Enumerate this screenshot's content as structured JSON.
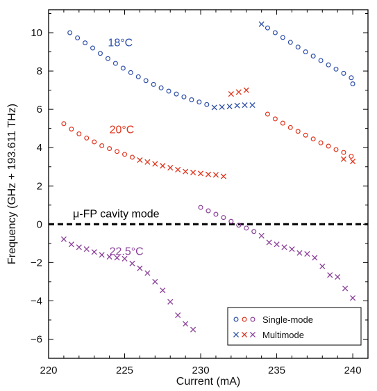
{
  "chart_data": {
    "type": "scatter",
    "xlabel": "Current (mA)",
    "ylabel": "Frequency (GHz + 193.611 THz)",
    "xlim": [
      220,
      241
    ],
    "ylim": [
      -7,
      11.2
    ],
    "x_ticks": [
      220,
      225,
      230,
      235,
      240
    ],
    "x_tick_labels": [
      "220",
      "225",
      "230",
      "235",
      "240"
    ],
    "y_ticks": [
      -6,
      -4,
      -2,
      0,
      2,
      4,
      6,
      8,
      10
    ],
    "y_tick_labels": [
      "−6",
      "−4",
      "−2",
      "0",
      "2",
      "4",
      "6",
      "8",
      "10"
    ],
    "grid": false,
    "legend": {
      "position": "bottom-right",
      "entries": [
        {
          "label": "Single-mode",
          "marker": "circle",
          "colors": [
            "#2e4fa8",
            "#e0341c",
            "#8a3f99"
          ]
        },
        {
          "label": "Multimode",
          "marker": "cross",
          "colors": [
            "#2e4fa8",
            "#e0341c",
            "#8a3f99"
          ]
        }
      ]
    },
    "reference_line": {
      "y": 0,
      "label": "μ-FP cavity mode",
      "style": "dashed",
      "color": "#000000"
    },
    "series": [
      {
        "name": "18°C",
        "color": "#2e4fa8",
        "label_at": [
          223.9,
          9.3
        ],
        "single_mode": [
          [
            221.4,
            10.0
          ],
          [
            221.9,
            9.73
          ],
          [
            222.4,
            9.47
          ],
          [
            222.9,
            9.2
          ],
          [
            223.4,
            8.92
          ],
          [
            223.9,
            8.65
          ],
          [
            224.4,
            8.4
          ],
          [
            224.9,
            8.15
          ],
          [
            225.4,
            7.92
          ],
          [
            225.9,
            7.7
          ],
          [
            226.4,
            7.5
          ],
          [
            226.9,
            7.3
          ],
          [
            227.4,
            7.12
          ],
          [
            227.9,
            6.95
          ],
          [
            228.4,
            6.8
          ],
          [
            228.9,
            6.65
          ],
          [
            229.4,
            6.5
          ],
          [
            229.9,
            6.38
          ],
          [
            230.4,
            6.25
          ],
          [
            234.4,
            10.25
          ],
          [
            234.9,
            10.0
          ],
          [
            235.4,
            9.75
          ],
          [
            235.9,
            9.5
          ],
          [
            236.4,
            9.25
          ],
          [
            236.9,
            9.0
          ],
          [
            237.4,
            8.78
          ],
          [
            237.9,
            8.55
          ],
          [
            238.4,
            8.32
          ],
          [
            238.9,
            8.1
          ],
          [
            239.4,
            7.88
          ],
          [
            239.9,
            7.65
          ],
          [
            240.0,
            7.33
          ]
        ],
        "multimode": [
          [
            230.9,
            6.1
          ],
          [
            231.4,
            6.12
          ],
          [
            231.9,
            6.15
          ],
          [
            232.4,
            6.2
          ],
          [
            232.9,
            6.22
          ],
          [
            233.4,
            6.22
          ],
          [
            234.0,
            10.45
          ]
        ]
      },
      {
        "name": "20°C",
        "color": "#e0341c",
        "label_at": [
          224.0,
          4.75
        ],
        "single_mode": [
          [
            221.0,
            5.25
          ],
          [
            221.5,
            4.97
          ],
          [
            222.0,
            4.72
          ],
          [
            222.5,
            4.5
          ],
          [
            223.0,
            4.3
          ],
          [
            223.5,
            4.1
          ],
          [
            224.0,
            3.95
          ],
          [
            224.5,
            3.8
          ],
          [
            225.0,
            3.65
          ],
          [
            225.5,
            3.5
          ],
          [
            234.4,
            5.75
          ],
          [
            234.9,
            5.5
          ],
          [
            235.4,
            5.28
          ],
          [
            235.9,
            5.05
          ],
          [
            236.4,
            4.85
          ],
          [
            236.9,
            4.65
          ],
          [
            237.4,
            4.45
          ],
          [
            237.9,
            4.25
          ],
          [
            238.4,
            4.08
          ],
          [
            238.9,
            3.9
          ],
          [
            239.4,
            3.75
          ],
          [
            239.9,
            3.55
          ]
        ],
        "multimode": [
          [
            226.0,
            3.35
          ],
          [
            226.5,
            3.25
          ],
          [
            227.0,
            3.15
          ],
          [
            227.5,
            3.05
          ],
          [
            228.0,
            2.95
          ],
          [
            228.5,
            2.85
          ],
          [
            229.0,
            2.75
          ],
          [
            229.5,
            2.7
          ],
          [
            230.0,
            2.65
          ],
          [
            230.5,
            2.6
          ],
          [
            231.0,
            2.58
          ],
          [
            231.5,
            2.5
          ],
          [
            232.0,
            6.8
          ],
          [
            232.5,
            6.9
          ],
          [
            233.0,
            7.0
          ],
          [
            239.4,
            3.4
          ],
          [
            240.0,
            3.28
          ]
        ]
      },
      {
        "name": "22.5°C",
        "color": "#8a3f99",
        "label_at": [
          224.0,
          -1.6
        ],
        "single_mode": [
          [
            230.0,
            0.88
          ],
          [
            230.5,
            0.7
          ],
          [
            231.0,
            0.52
          ],
          [
            231.5,
            0.35
          ],
          [
            232.0,
            0.15
          ],
          [
            232.5,
            -0.05
          ],
          [
            233.0,
            -0.2
          ],
          [
            233.5,
            -0.38
          ]
        ],
        "multimode": [
          [
            221.0,
            -0.78
          ],
          [
            221.5,
            -1.05
          ],
          [
            222.0,
            -1.2
          ],
          [
            222.5,
            -1.3
          ],
          [
            223.0,
            -1.45
          ],
          [
            223.5,
            -1.6
          ],
          [
            224.0,
            -1.7
          ],
          [
            224.5,
            -1.75
          ],
          [
            225.0,
            -1.8
          ],
          [
            225.5,
            -2.05
          ],
          [
            226.0,
            -2.3
          ],
          [
            226.5,
            -2.55
          ],
          [
            227.0,
            -3.0
          ],
          [
            227.5,
            -3.45
          ],
          [
            228.0,
            -4.05
          ],
          [
            228.5,
            -4.75
          ],
          [
            229.0,
            -5.2
          ],
          [
            229.5,
            -5.5
          ],
          [
            234.0,
            -0.6
          ],
          [
            234.5,
            -0.95
          ],
          [
            235.0,
            -1.05
          ],
          [
            235.5,
            -1.2
          ],
          [
            236.0,
            -1.3
          ],
          [
            236.5,
            -1.5
          ],
          [
            237.0,
            -1.55
          ],
          [
            237.5,
            -1.75
          ],
          [
            238.0,
            -2.2
          ],
          [
            238.5,
            -2.65
          ],
          [
            239.0,
            -2.75
          ],
          [
            239.5,
            -3.35
          ],
          [
            240.0,
            -3.85
          ]
        ]
      }
    ]
  }
}
